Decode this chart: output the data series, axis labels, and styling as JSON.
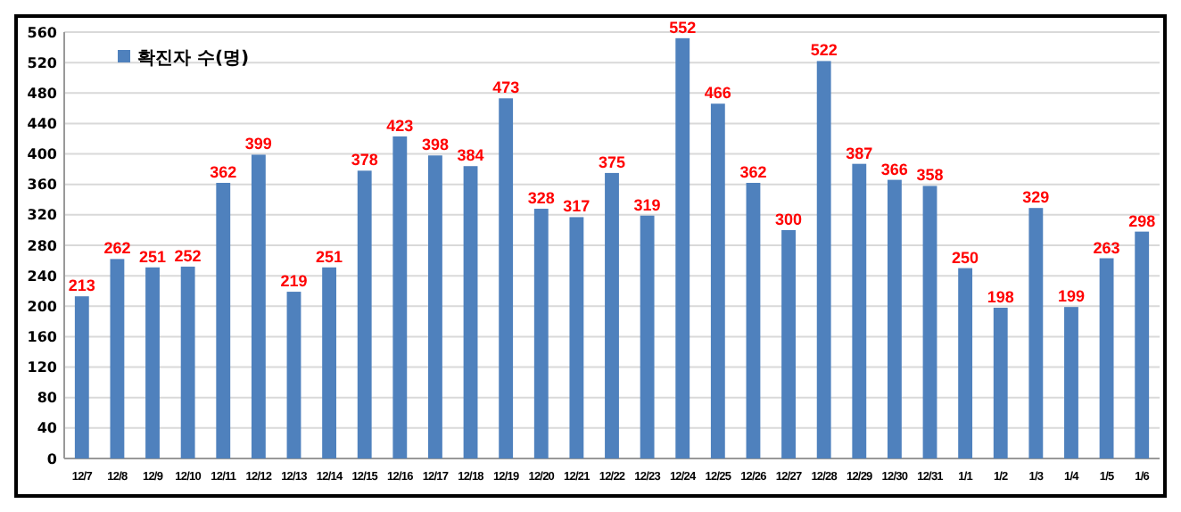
{
  "chart_data": {
    "type": "bar",
    "categories": [
      "12/7",
      "12/8",
      "12/9",
      "12/10",
      "12/11",
      "12/12",
      "12/13",
      "12/14",
      "12/15",
      "12/16",
      "12/17",
      "12/18",
      "12/19",
      "12/20",
      "12/21",
      "12/22",
      "12/23",
      "12/24",
      "12/25",
      "12/26",
      "12/27",
      "12/28",
      "12/29",
      "12/30",
      "12/31",
      "1/1",
      "1/2",
      "1/3",
      "1/4",
      "1/5",
      "1/6"
    ],
    "series": [
      {
        "name": "확진자 수(명)",
        "color": "#4f81bd",
        "values": [
          213,
          262,
          251,
          252,
          362,
          399,
          219,
          251,
          378,
          423,
          398,
          384,
          473,
          328,
          317,
          375,
          319,
          552,
          466,
          362,
          300,
          522,
          387,
          366,
          358,
          250,
          198,
          329,
          199,
          263,
          298
        ]
      }
    ],
    "ylim": [
      0,
      560
    ],
    "yticks": [
      0,
      40,
      80,
      120,
      160,
      200,
      240,
      280,
      320,
      360,
      400,
      440,
      480,
      520,
      560
    ],
    "grid": "y",
    "legend": "top left",
    "data_labels": true
  }
}
